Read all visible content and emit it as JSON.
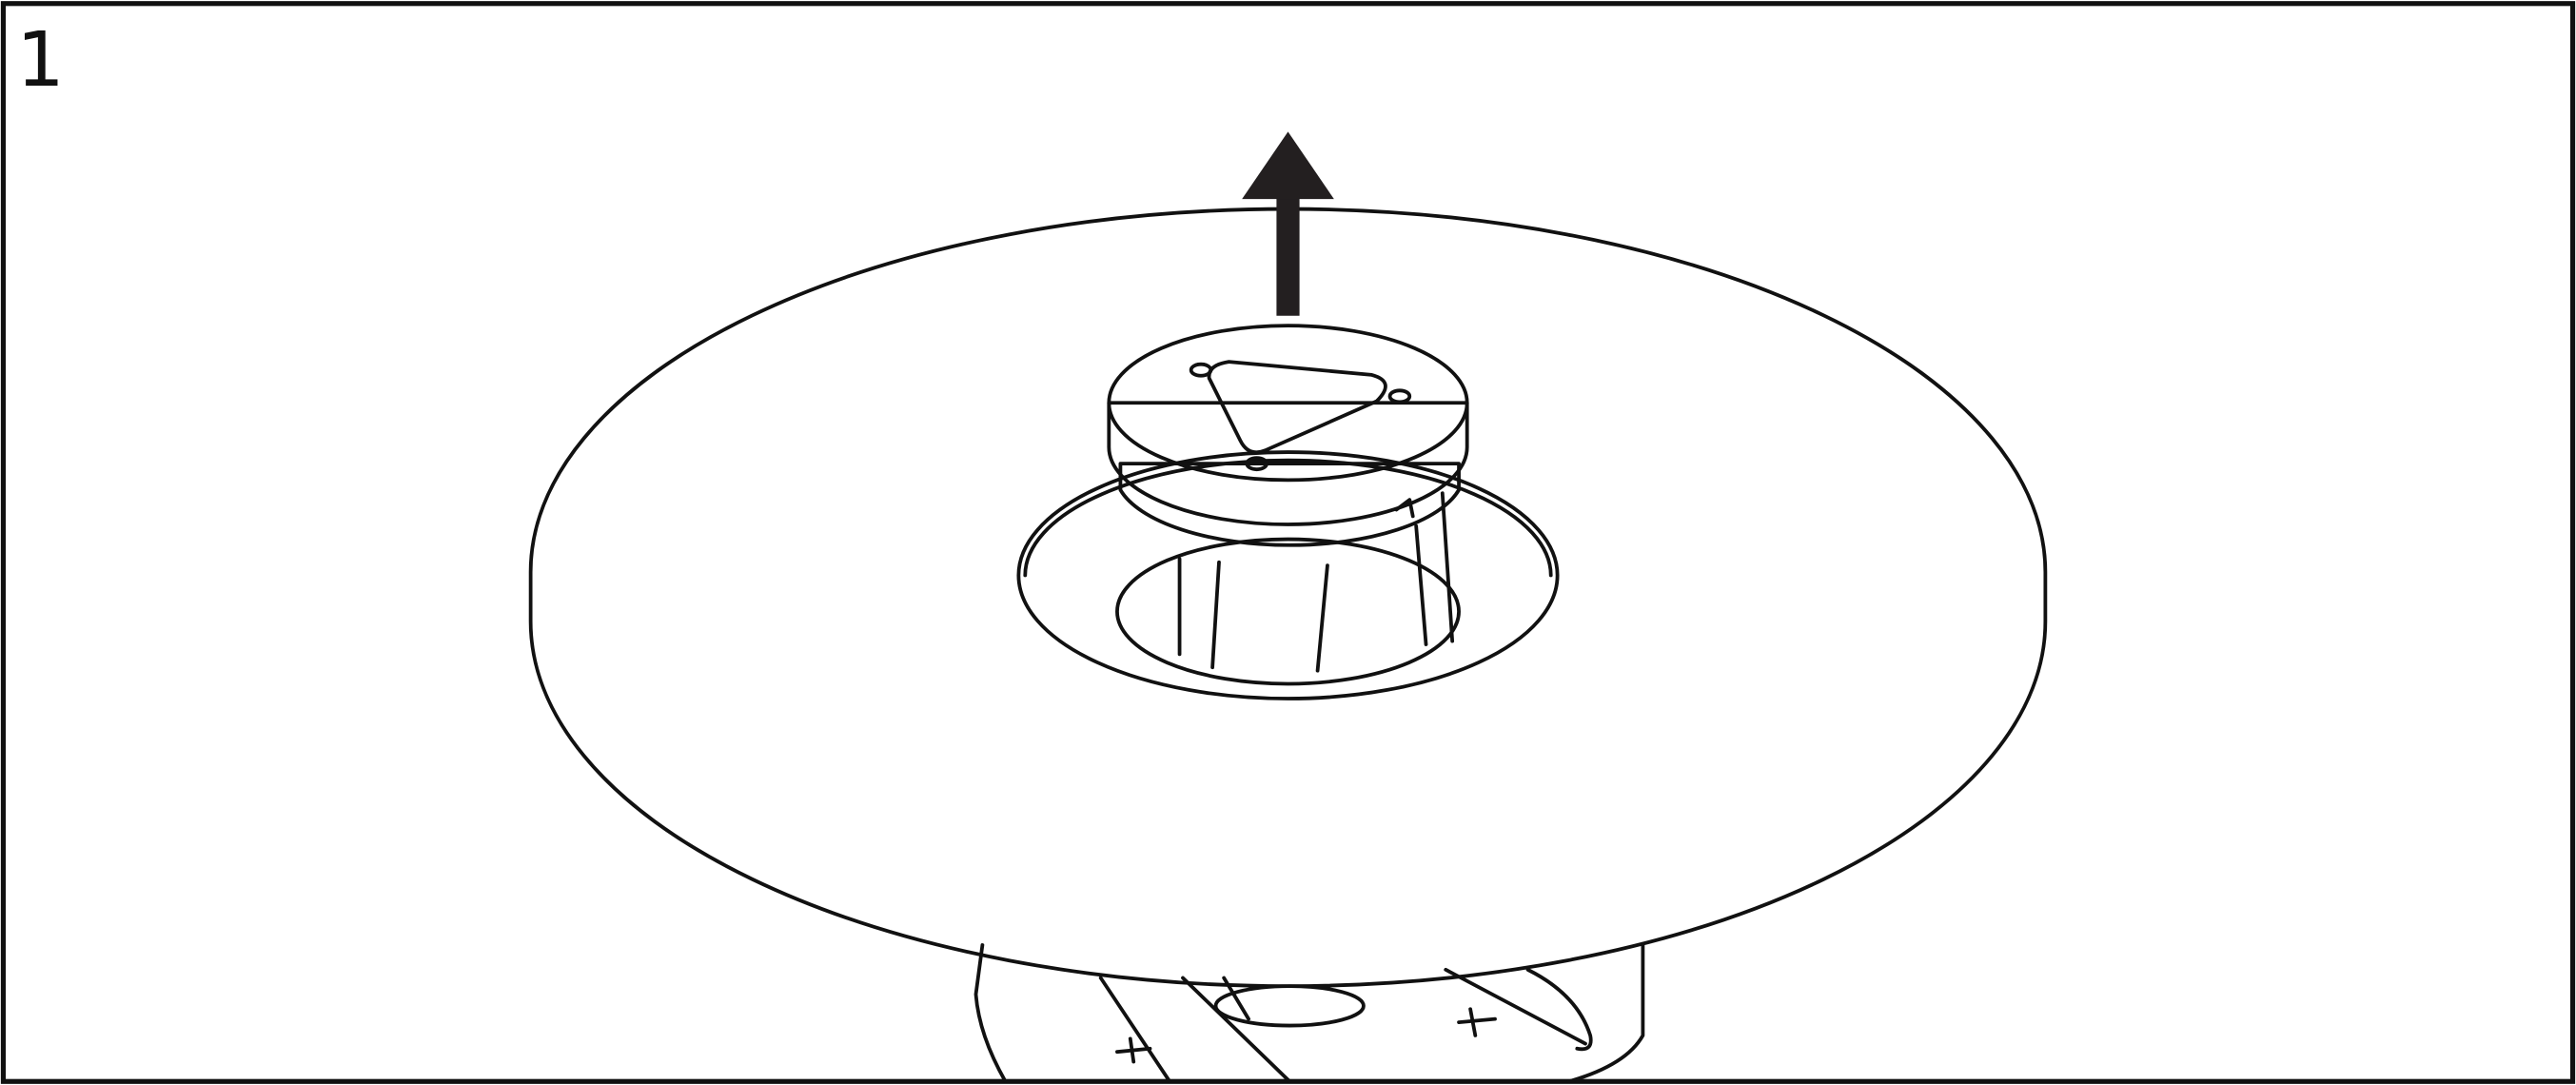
{
  "step": "1"
}
